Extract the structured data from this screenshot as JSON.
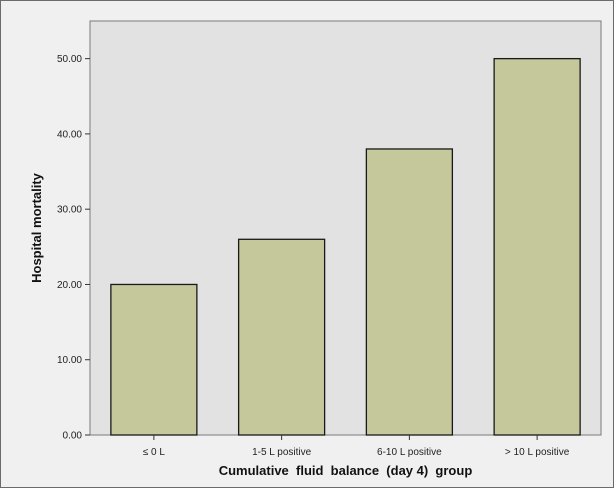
{
  "chart_data": {
    "type": "bar",
    "title": "",
    "xlabel": "Cumulative  fluid  balance  (day 4)  group",
    "ylabel": "Hospital mortality",
    "categories": [
      "≤ 0 L",
      "1-5 L positive",
      "6-10 L positive",
      "> 10 L positive"
    ],
    "values": [
      20,
      26,
      38,
      50
    ],
    "ylim": [
      0,
      55
    ],
    "yticks": [
      0,
      10,
      20,
      30,
      40,
      50
    ],
    "ytick_labels": [
      "0.00",
      "10.00",
      "20.00",
      "30.00",
      "40.00",
      "50.00"
    ],
    "grid": false,
    "legend": "none",
    "colors": {
      "bar_fill": "#c4c89a",
      "bar_stroke": "#1a1a1a",
      "plot_background": "#e2e2e2",
      "figure_background": "#f0f0f0"
    }
  }
}
